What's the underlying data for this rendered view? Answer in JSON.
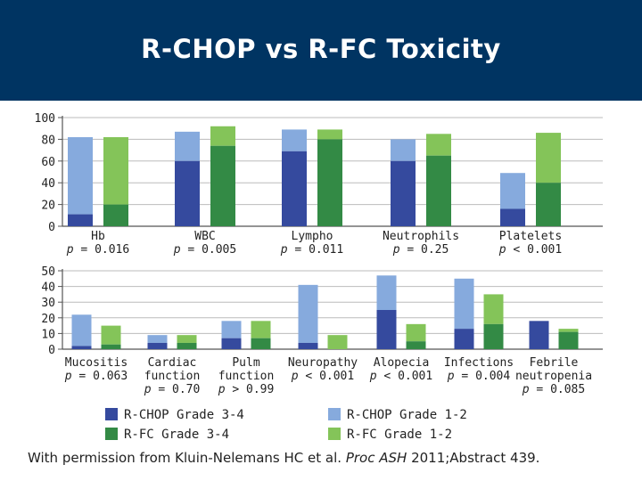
{
  "slide": {
    "title": "R-CHOP vs R-FC Toxicity",
    "footer_pre": "With permission from Kluin-Nelemans HC et al. ",
    "footer_ital": "Proc ASH",
    "footer_post": " 2011;Abstract 439."
  },
  "colors": {
    "header_bg": "#003462",
    "rchop_34": "#354a9e",
    "rchop_12": "#86aadd",
    "rfc_34": "#338a45",
    "rfc_12": "#84c459",
    "axis": "#555555",
    "grid": "#bbbbbb"
  },
  "legend": [
    {
      "label": "R-CHOP Grade 3-4",
      "color_key": "rchop_34"
    },
    {
      "label": "R-CHOP Grade 1-2",
      "color_key": "rchop_12"
    },
    {
      "label": "R-FC Grade 3-4",
      "color_key": "rfc_34"
    },
    {
      "label": "R-FC Grade 1-2",
      "color_key": "rfc_12"
    }
  ],
  "chart_data": [
    {
      "type": "bar",
      "stacked": true,
      "title": "",
      "ylabel": "",
      "ylim": [
        0,
        100
      ],
      "yticks": [
        0,
        20,
        40,
        60,
        80,
        100
      ],
      "series_order": [
        "R-CHOP Grade 3-4",
        "R-CHOP Grade 1-2",
        "R-FC Grade 3-4",
        "R-FC Grade 1-2"
      ],
      "categories": [
        {
          "name": "Hb",
          "pvalue": "p = 0.016",
          "rchop": {
            "grade34": 11,
            "total": 82
          },
          "rfc": {
            "grade34": 20,
            "total": 82
          }
        },
        {
          "name": "WBC",
          "pvalue": "p = 0.005",
          "rchop": {
            "grade34": 60,
            "total": 87
          },
          "rfc": {
            "grade34": 74,
            "total": 92
          }
        },
        {
          "name": "Lympho",
          "pvalue": "p = 0.011",
          "rchop": {
            "grade34": 69,
            "total": 89
          },
          "rfc": {
            "grade34": 80,
            "total": 89
          }
        },
        {
          "name": "Neutrophils",
          "pvalue": "p = 0.25",
          "rchop": {
            "grade34": 60,
            "total": 80
          },
          "rfc": {
            "grade34": 65,
            "total": 85
          }
        },
        {
          "name": "Platelets",
          "pvalue": "p < 0.001",
          "rchop": {
            "grade34": 16,
            "total": 49
          },
          "rfc": {
            "grade34": 40,
            "total": 86
          }
        }
      ]
    },
    {
      "type": "bar",
      "stacked": true,
      "title": "",
      "ylabel": "",
      "ylim": [
        0,
        50
      ],
      "yticks": [
        0,
        10,
        20,
        30,
        40,
        50
      ],
      "series_order": [
        "R-CHOP Grade 3-4",
        "R-CHOP Grade 1-2",
        "R-FC Grade 3-4",
        "R-FC Grade 1-2"
      ],
      "categories": [
        {
          "name": "Mucositis",
          "pvalue": "p = 0.063",
          "rchop": {
            "grade34": 2,
            "total": 22
          },
          "rfc": {
            "grade34": 3,
            "total": 15
          }
        },
        {
          "name": "Cardiac\nfunction",
          "pvalue": "p = 0.70",
          "rchop": {
            "grade34": 4,
            "total": 9
          },
          "rfc": {
            "grade34": 4,
            "total": 9
          }
        },
        {
          "name": "Pulm\nfunction",
          "pvalue": "p > 0.99",
          "rchop": {
            "grade34": 7,
            "total": 18
          },
          "rfc": {
            "grade34": 7,
            "total": 18
          }
        },
        {
          "name": "Neuropathy",
          "pvalue": "p < 0.001",
          "rchop": {
            "grade34": 4,
            "total": 41
          },
          "rfc": {
            "grade34": 0,
            "total": 9
          }
        },
        {
          "name": "Alopecia",
          "pvalue": "p < 0.001",
          "rchop": {
            "grade34": 25,
            "total": 47
          },
          "rfc": {
            "grade34": 5,
            "total": 16
          }
        },
        {
          "name": "Infections",
          "pvalue": "p = 0.004",
          "rchop": {
            "grade34": 13,
            "total": 45
          },
          "rfc": {
            "grade34": 16,
            "total": 35
          }
        },
        {
          "name": "Febrile\nneutropenia",
          "pvalue": "p = 0.085",
          "rchop": {
            "grade34": 18,
            "total": 18
          },
          "rfc": {
            "grade34": 11,
            "total": 13
          }
        }
      ]
    }
  ]
}
